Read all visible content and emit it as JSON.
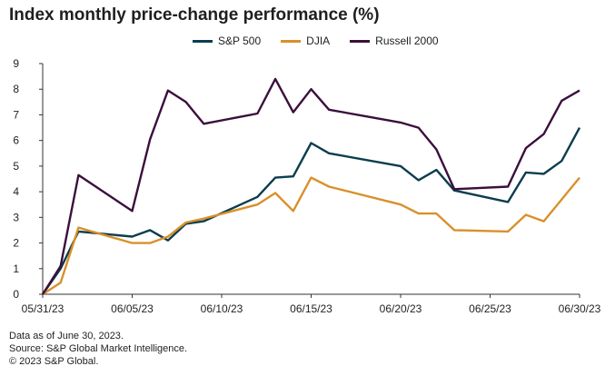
{
  "chart_data": {
    "type": "line",
    "title": "Index monthly price-change performance (%)",
    "xlabel": "",
    "ylabel": "",
    "ylim": [
      0,
      9
    ],
    "yticks": [
      0,
      1,
      2,
      3,
      4,
      5,
      6,
      7,
      8,
      9
    ],
    "xlim": [
      "2023-05-31",
      "2023-06-30"
    ],
    "xticks": [
      "05/31/23",
      "06/05/23",
      "06/10/23",
      "06/15/23",
      "06/20/23",
      "06/25/23",
      "06/30/23"
    ],
    "xtick_dates": [
      "2023-05-31",
      "2023-06-05",
      "2023-06-10",
      "2023-06-15",
      "2023-06-20",
      "2023-06-25",
      "2023-06-30"
    ],
    "grid": false,
    "legend_position": "top",
    "series": [
      {
        "name": "S&P 500",
        "color": "#0b3d4f",
        "points": [
          [
            "2023-05-31",
            0.0
          ],
          [
            "2023-06-01",
            1.0
          ],
          [
            "2023-06-02",
            2.45
          ],
          [
            "2023-06-05",
            2.25
          ],
          [
            "2023-06-06",
            2.5
          ],
          [
            "2023-06-07",
            2.1
          ],
          [
            "2023-06-08",
            2.75
          ],
          [
            "2023-06-09",
            2.85
          ],
          [
            "2023-06-12",
            3.8
          ],
          [
            "2023-06-13",
            4.55
          ],
          [
            "2023-06-14",
            4.6
          ],
          [
            "2023-06-15",
            5.9
          ],
          [
            "2023-06-16",
            5.5
          ],
          [
            "2023-06-20",
            5.0
          ],
          [
            "2023-06-21",
            4.45
          ],
          [
            "2023-06-22",
            4.85
          ],
          [
            "2023-06-23",
            4.05
          ],
          [
            "2023-06-26",
            3.6
          ],
          [
            "2023-06-27",
            4.75
          ],
          [
            "2023-06-28",
            4.7
          ],
          [
            "2023-06-29",
            5.2
          ],
          [
            "2023-06-30",
            6.5
          ]
        ]
      },
      {
        "name": "DJIA",
        "color": "#d9902a",
        "points": [
          [
            "2023-05-31",
            0.0
          ],
          [
            "2023-06-01",
            0.45
          ],
          [
            "2023-06-02",
            2.6
          ],
          [
            "2023-06-05",
            2.0
          ],
          [
            "2023-06-06",
            2.0
          ],
          [
            "2023-06-07",
            2.25
          ],
          [
            "2023-06-08",
            2.8
          ],
          [
            "2023-06-09",
            2.95
          ],
          [
            "2023-06-12",
            3.5
          ],
          [
            "2023-06-13",
            3.95
          ],
          [
            "2023-06-14",
            3.25
          ],
          [
            "2023-06-15",
            4.55
          ],
          [
            "2023-06-16",
            4.2
          ],
          [
            "2023-06-20",
            3.5
          ],
          [
            "2023-06-21",
            3.15
          ],
          [
            "2023-06-22",
            3.15
          ],
          [
            "2023-06-23",
            2.5
          ],
          [
            "2023-06-26",
            2.45
          ],
          [
            "2023-06-27",
            3.1
          ],
          [
            "2023-06-28",
            2.85
          ],
          [
            "2023-06-30",
            4.55
          ]
        ]
      },
      {
        "name": "Russell 2000",
        "color": "#3b0f3c",
        "points": [
          [
            "2023-05-31",
            0.0
          ],
          [
            "2023-06-01",
            1.1
          ],
          [
            "2023-06-02",
            4.65
          ],
          [
            "2023-06-05",
            3.25
          ],
          [
            "2023-06-06",
            6.05
          ],
          [
            "2023-06-07",
            7.95
          ],
          [
            "2023-06-08",
            7.5
          ],
          [
            "2023-06-09",
            6.65
          ],
          [
            "2023-06-12",
            7.05
          ],
          [
            "2023-06-13",
            8.4
          ],
          [
            "2023-06-14",
            7.1
          ],
          [
            "2023-06-15",
            8.0
          ],
          [
            "2023-06-16",
            7.2
          ],
          [
            "2023-06-20",
            6.7
          ],
          [
            "2023-06-21",
            6.5
          ],
          [
            "2023-06-22",
            5.65
          ],
          [
            "2023-06-23",
            4.1
          ],
          [
            "2023-06-26",
            4.2
          ],
          [
            "2023-06-27",
            5.7
          ],
          [
            "2023-06-28",
            6.25
          ],
          [
            "2023-06-29",
            7.55
          ],
          [
            "2023-06-30",
            7.95
          ]
        ]
      }
    ]
  },
  "footer": {
    "line1": "Data as of June 30, 2023.",
    "line2": "Source: S&P Global Market Intelligence.",
    "line3": "© 2023 S&P Global."
  }
}
